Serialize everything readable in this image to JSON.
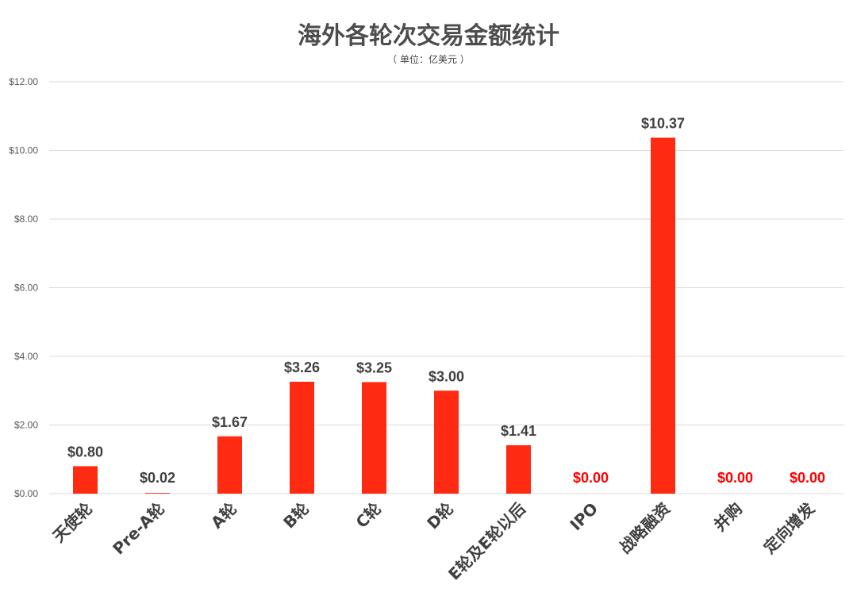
{
  "chart_data": {
    "type": "bar",
    "title": "海外各轮次交易金额统计",
    "subtitle": "（ 单位：亿美元 ）",
    "categories": [
      "天使轮",
      "Pre-A轮",
      "A轮",
      "B轮",
      "C轮",
      "D轮",
      "E轮及E轮以后",
      "IPO",
      "战略融资",
      "并购",
      "定向增发"
    ],
    "values": [
      0.8,
      0.02,
      1.67,
      3.26,
      3.25,
      3.0,
      1.41,
      0.0,
      10.37,
      0.0,
      0.0
    ],
    "value_labels": [
      "$0.80",
      "$0.02",
      "$1.67",
      "$3.26",
      "$3.25",
      "$3.00",
      "$1.41",
      "$0.00",
      "$10.37",
      "$0.00",
      "$0.00"
    ],
    "ylim": [
      0,
      12
    ],
    "yticks": [
      "$0.00",
      "$2.00",
      "$4.00",
      "$6.00",
      "$8.00",
      "$10.00",
      "$12.00"
    ],
    "ytick_values": [
      0,
      2,
      4,
      6,
      8,
      10,
      12
    ],
    "grid": true,
    "legend": "none",
    "colors": {
      "bar": "#ff2a12",
      "label_default": "#404040",
      "label_zero": "#ff0000",
      "grid": "#d9d9d9"
    }
  }
}
